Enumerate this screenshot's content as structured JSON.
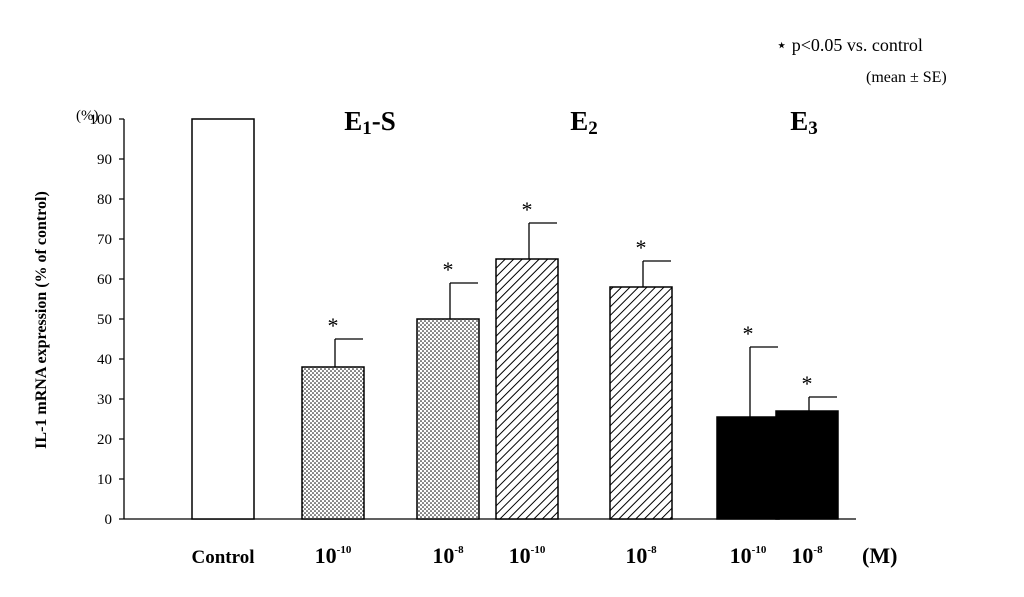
{
  "chart_data": {
    "type": "bar",
    "ylabel": "IL-1 mRNA expression (% of control)",
    "y_unit": "(%)",
    "ylim": [
      0,
      100
    ],
    "y_ticks": [
      "0",
      "10",
      "20",
      "30",
      "40",
      "50",
      "60",
      "70",
      "80",
      "90",
      "100"
    ],
    "legend_note": "⋆ p<0.05 vs. control",
    "legend_note2": "(mean ± SE)",
    "x_unit": "(M)",
    "groups": [
      {
        "label_main": "E",
        "label_sub": "1",
        "label_suffix": "-S"
      },
      {
        "label_main": "E",
        "label_sub": "2",
        "label_suffix": ""
      },
      {
        "label_main": "E",
        "label_sub": "3",
        "label_suffix": ""
      }
    ],
    "bars": [
      {
        "label": "Control",
        "base": "",
        "exp": "",
        "value": 100,
        "error": 0,
        "significant": false,
        "fill": "white"
      },
      {
        "label": "10-10",
        "base": "10",
        "exp": "-10",
        "value": 38,
        "error": 7,
        "significant": true,
        "fill": "dots"
      },
      {
        "label": "10-8",
        "base": "10",
        "exp": "-8",
        "value": 50,
        "error": 9,
        "significant": true,
        "fill": "dots"
      },
      {
        "label": "10-10",
        "base": "10",
        "exp": "-10",
        "value": 65,
        "error": 9,
        "significant": true,
        "fill": "hatch"
      },
      {
        "label": "10-8",
        "base": "10",
        "exp": "-8",
        "value": 58,
        "error": 6.5,
        "significant": true,
        "fill": "hatch"
      },
      {
        "label": "10-10",
        "base": "10",
        "exp": "-10",
        "value": 25.5,
        "error": 17.5,
        "significant": true,
        "fill": "black"
      },
      {
        "label": "10-8",
        "base": "10",
        "exp": "-8",
        "value": 27,
        "error": 3.5,
        "significant": true,
        "fill": "black"
      }
    ],
    "colors": {
      "axis": "#000000",
      "bar_stroke": "#000000",
      "black_fill": "#000000",
      "white_fill": "#ffffff"
    }
  }
}
